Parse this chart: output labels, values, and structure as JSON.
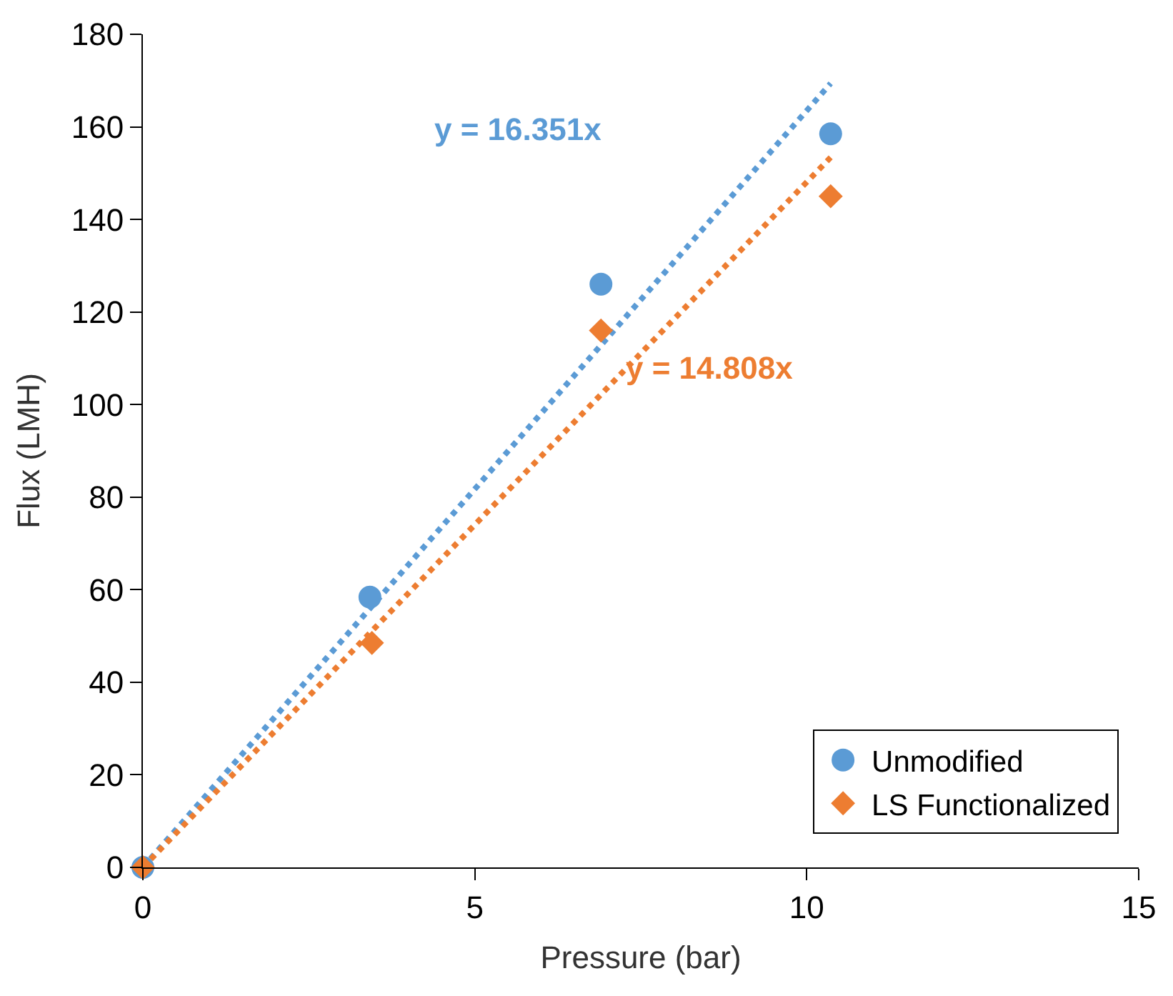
{
  "chart_data": {
    "type": "scatter",
    "xlabel": "Pressure (bar)",
    "ylabel": "Flux (LMH)",
    "xlim": [
      0,
      15
    ],
    "xticks": [
      0,
      5,
      10,
      15
    ],
    "ylim": [
      0,
      180
    ],
    "yticks": [
      0,
      20,
      40,
      60,
      80,
      100,
      120,
      140,
      160,
      180
    ],
    "legend": "bottom right",
    "series": [
      {
        "name": "Unmodified",
        "color": "#5b9bd5",
        "marker": "circle",
        "x": [
          0,
          3.42,
          6.9,
          10.36
        ],
        "values": [
          0,
          58.4,
          126,
          158.5
        ]
      },
      {
        "name": "LS Functionalized",
        "color": "#ed7d31",
        "marker": "diamond",
        "x": [
          0,
          3.45,
          6.9,
          10.36
        ],
        "values": [
          0,
          48.5,
          116,
          145
        ]
      },
      {
        "type": "line",
        "color": "#5b9bd5",
        "line_style": "dotted",
        "marker": "none",
        "x": [
          0,
          10.36
        ],
        "values": [
          0,
          169.4
        ]
      },
      {
        "type": "line",
        "color": "#ed7d31",
        "line_style": "dotted",
        "marker": "none",
        "x": [
          0,
          10.36
        ],
        "values": [
          0,
          153.4
        ]
      }
    ],
    "annotations": [
      "y = 16.351x",
      "y = 14.808x"
    ]
  }
}
